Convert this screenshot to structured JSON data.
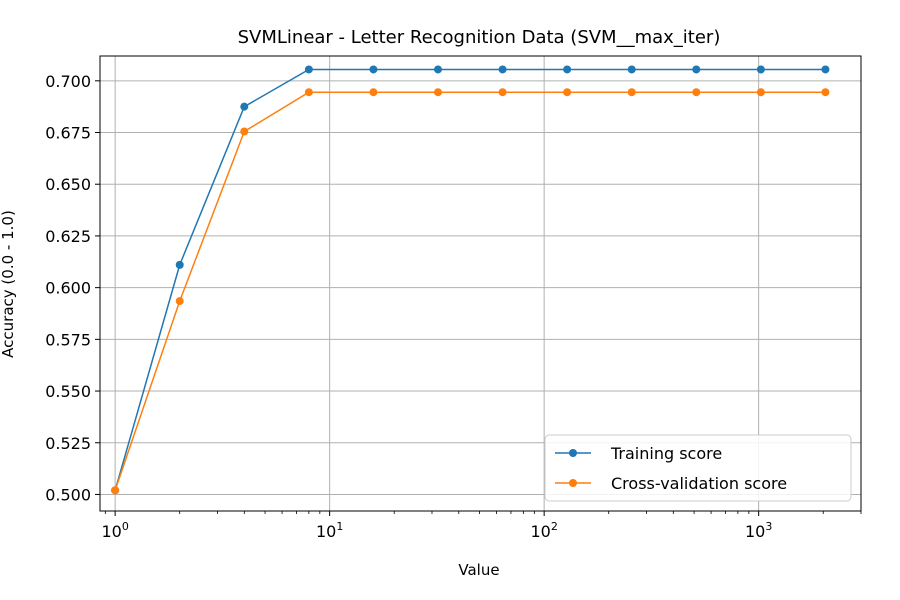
{
  "chart_data": {
    "type": "line",
    "title": "SVMLinear - Letter Recognition Data (SVM__max_iter)",
    "xlabel": "Value",
    "ylabel": "Accuracy (0.0 - 1.0)",
    "xscale": "log",
    "xlim": [
      0.85,
      3000
    ],
    "ylim": [
      0.492,
      0.712
    ],
    "grid": true,
    "legend_position": "lower-right",
    "x": [
      1,
      2,
      4,
      8,
      16,
      32,
      64,
      128,
      256,
      512,
      1024,
      2048
    ],
    "series": [
      {
        "name": "Training score",
        "color": "#1f77b4",
        "values": [
          0.502,
          0.611,
          0.6875,
          0.7055,
          0.7055,
          0.7055,
          0.7055,
          0.7055,
          0.7055,
          0.7055,
          0.7055,
          0.7055
        ]
      },
      {
        "name": "Cross-validation score",
        "color": "#ff7f0e",
        "values": [
          0.502,
          0.5935,
          0.6755,
          0.6945,
          0.6945,
          0.6945,
          0.6945,
          0.6945,
          0.6945,
          0.6945,
          0.6945,
          0.6945
        ]
      }
    ],
    "yticks": [
      0.5,
      0.525,
      0.55,
      0.575,
      0.6,
      0.625,
      0.65,
      0.675,
      0.7
    ],
    "ytick_labels": [
      "0.500",
      "0.525",
      "0.550",
      "0.575",
      "0.600",
      "0.625",
      "0.650",
      "0.675",
      "0.700"
    ],
    "xticks": [
      1,
      10,
      100,
      1000
    ],
    "xtick_bases": [
      "10",
      "10",
      "10",
      "10"
    ],
    "xtick_exponents": [
      "0",
      "1",
      "2",
      "3"
    ]
  }
}
